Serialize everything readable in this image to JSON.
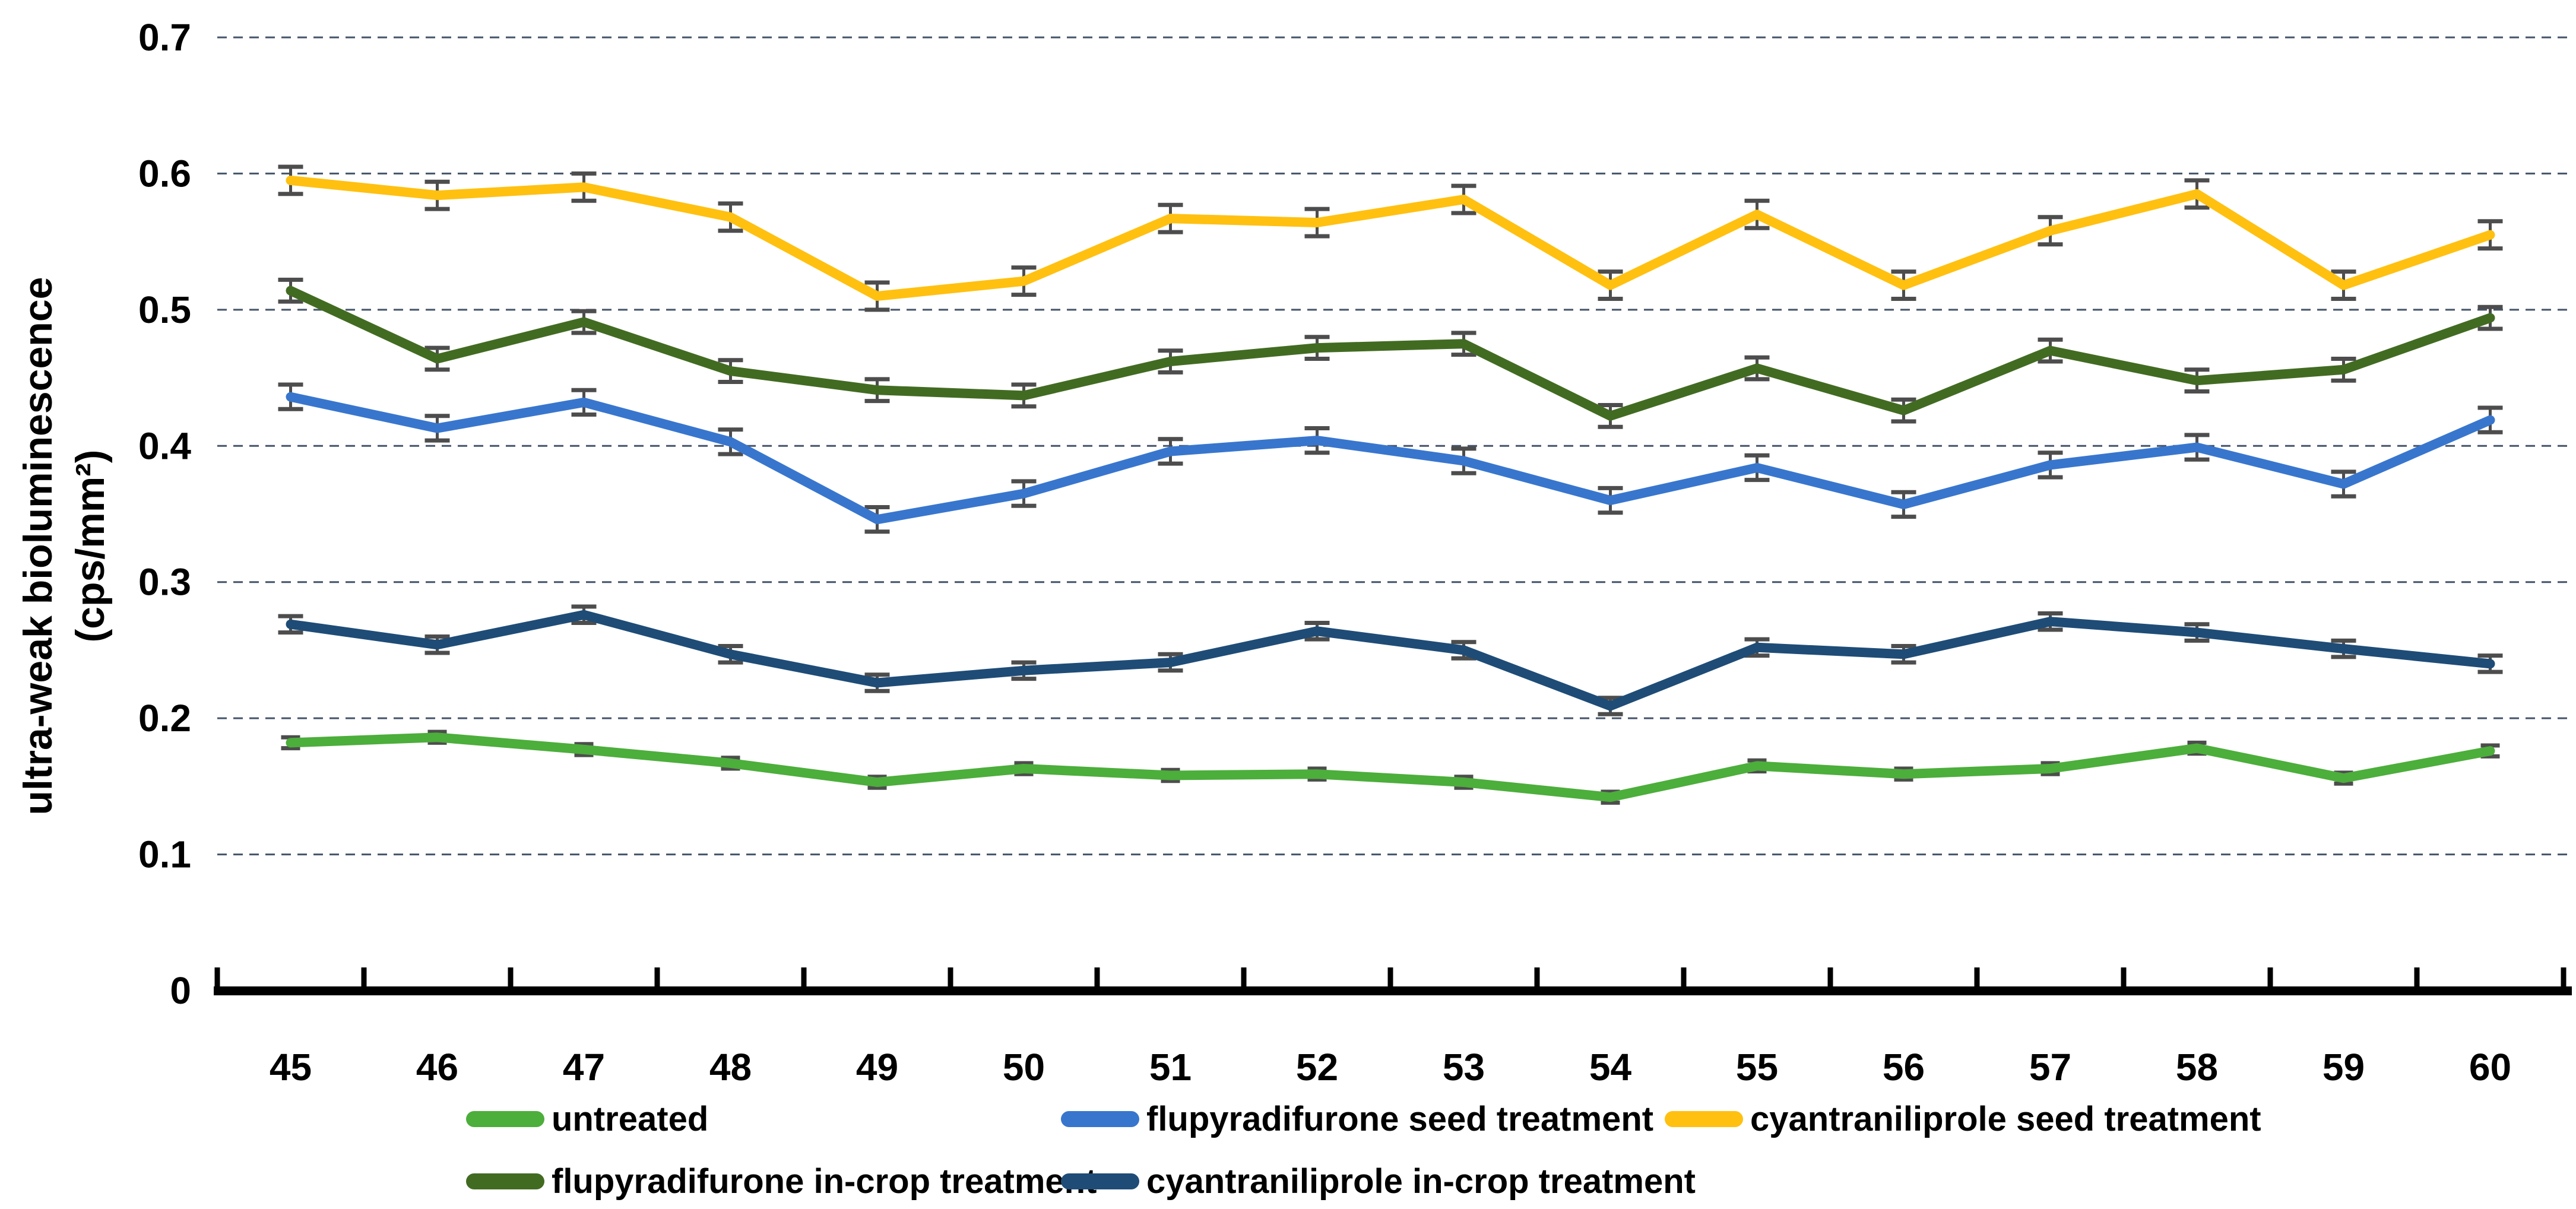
{
  "figure": {
    "background": "#ffffff",
    "error_bar_color": "#4d4d4d",
    "gridline_color": "#44546A",
    "axis_color": "#000000"
  },
  "y_axis": {
    "title_line1": "ultra-weak bioluminescence",
    "title_line2": "(cps/mm²)",
    "tick_labels": [
      "0",
      "0.1",
      "0.2",
      "0.3",
      "0.4",
      "0.5",
      "0.6",
      "0.7"
    ],
    "min": 0,
    "max": 0.7,
    "step": 0.1
  },
  "x_axis": {
    "tick_labels": [
      "45",
      "46",
      "47",
      "48",
      "49",
      "50",
      "51",
      "52",
      "53",
      "54",
      "55",
      "56",
      "57",
      "58",
      "59",
      "60"
    ]
  },
  "chart_data": {
    "type": "line",
    "x": [
      45,
      46,
      47,
      48,
      49,
      50,
      51,
      52,
      53,
      54,
      55,
      56,
      57,
      58,
      59,
      60
    ],
    "xlabel": "",
    "ylabel": "ultra-weak bioluminescence (cps/mm²)",
    "ylim": [
      0,
      0.7
    ],
    "grid": "horizontal-dashed",
    "legend_position": "bottom",
    "legend_rows": [
      [
        0,
        1,
        2
      ],
      [
        3,
        4
      ]
    ],
    "series": [
      {
        "name": "untreated",
        "color": "#4CAE3B",
        "error_bar": 0.004,
        "values": [
          0.182,
          0.186,
          0.177,
          0.167,
          0.153,
          0.163,
          0.158,
          0.159,
          0.153,
          0.142,
          0.165,
          0.159,
          0.163,
          0.178,
          0.156,
          0.176
        ]
      },
      {
        "name": "flupyradifurone seed treatment",
        "color": "#3876CE",
        "error_bar": 0.009,
        "values": [
          0.436,
          0.413,
          0.432,
          0.403,
          0.346,
          0.365,
          0.396,
          0.404,
          0.389,
          0.36,
          0.384,
          0.357,
          0.386,
          0.399,
          0.372,
          0.419
        ]
      },
      {
        "name": "cyantraniliprole seed treatment",
        "color": "#FFC010",
        "error_bar": 0.01,
        "values": [
          0.595,
          0.584,
          0.59,
          0.568,
          0.51,
          0.521,
          0.567,
          0.564,
          0.581,
          0.518,
          0.57,
          0.518,
          0.558,
          0.585,
          0.518,
          0.555
        ]
      },
      {
        "name": "flupyradifurone in-crop treatment",
        "color": "#426B22",
        "error_bar": 0.008,
        "values": [
          0.514,
          0.464,
          0.491,
          0.455,
          0.441,
          0.437,
          0.462,
          0.472,
          0.475,
          0.422,
          0.457,
          0.426,
          0.47,
          0.448,
          0.456,
          0.494
        ]
      },
      {
        "name": "cyantraniliprole in-crop treatment",
        "color": "#1E4C77",
        "error_bar": 0.006,
        "values": [
          0.269,
          0.254,
          0.276,
          0.247,
          0.226,
          0.235,
          0.241,
          0.264,
          0.25,
          0.209,
          0.252,
          0.247,
          0.271,
          0.263,
          0.251,
          0.24
        ]
      }
    ]
  }
}
